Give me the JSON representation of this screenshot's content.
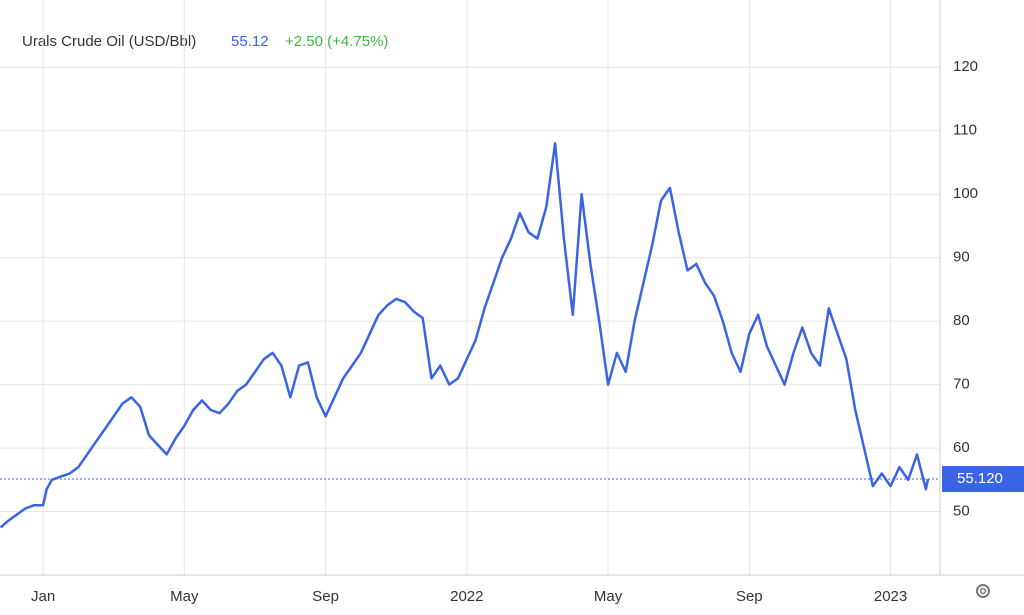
{
  "chart_data": {
    "type": "line",
    "title": "Urals Crude Oil (USD/Bbl)",
    "price": "55.12",
    "change": "+2.50 (+4.75%)",
    "last_label": {
      "value": 55.12,
      "label": "55.120"
    },
    "color": "#3b63e6",
    "grid": true,
    "x": [
      -1.2,
      -1.0,
      -0.75,
      -0.5,
      -0.25,
      0,
      0.1,
      0.25,
      0.5,
      0.75,
      1.0,
      1.25,
      1.5,
      1.75,
      2.0,
      2.25,
      2.5,
      2.75,
      3.0,
      3.25,
      3.5,
      3.75,
      4.0,
      4.25,
      4.5,
      4.75,
      5.0,
      5.25,
      5.5,
      5.75,
      6.0,
      6.25,
      6.5,
      6.75,
      7.0,
      7.25,
      7.5,
      7.75,
      8.0,
      8.25,
      8.5,
      8.75,
      9.0,
      9.25,
      9.5,
      9.75,
      10.0,
      10.25,
      10.5,
      10.75,
      11.0,
      11.25,
      11.5,
      11.75,
      12.0,
      12.25,
      12.5,
      12.75,
      13.0,
      13.25,
      13.5,
      13.75,
      14.0,
      14.25,
      14.5,
      14.75,
      15.0,
      15.25,
      15.5,
      15.75,
      16.0,
      16.25,
      16.5,
      16.75,
      17.0,
      17.25,
      17.5,
      17.75,
      18.0,
      18.25,
      18.5,
      18.75,
      19.0,
      19.25,
      19.5,
      19.75,
      20.0,
      20.25,
      20.5,
      20.75,
      21.0,
      21.25,
      21.5,
      21.75,
      22.0,
      22.25,
      22.5,
      22.75,
      23.0,
      23.25,
      23.5,
      23.75,
      24.0,
      24.25,
      24.5,
      24.75,
      25.0,
      25.06
    ],
    "series": [
      {
        "name": "Urals Crude Oil",
        "color": "#3b63e6",
        "values": [
          47.5,
          48.5,
          49.5,
          50.5,
          51,
          51,
          53.5,
          55,
          55.5,
          56,
          57,
          59,
          61,
          63,
          65,
          67,
          68,
          66.5,
          62,
          60.5,
          59,
          61.5,
          63.5,
          66,
          67.5,
          66,
          65.5,
          67,
          69,
          70,
          72,
          74,
          75,
          73,
          68,
          73,
          73.5,
          68,
          65,
          68,
          71,
          73,
          75,
          78,
          81,
          82.5,
          83.5,
          83,
          81.5,
          80.5,
          71,
          73,
          70,
          71,
          74,
          77,
          82,
          86,
          90,
          93,
          97,
          94,
          93,
          98,
          108,
          93,
          81,
          100,
          89,
          80,
          70,
          75,
          72,
          80,
          86,
          92,
          99,
          101,
          94,
          88,
          89,
          86,
          84,
          80,
          75,
          72,
          78,
          81,
          76,
          73,
          70,
          75,
          79,
          75,
          73,
          82,
          78,
          74,
          66,
          60,
          54,
          56,
          54,
          57,
          55,
          59,
          53.5,
          55.12
        ]
      }
    ],
    "xlim": [
      -1.22,
      25.4
    ],
    "xticks": [
      {
        "value": 0,
        "label": "Jan"
      },
      {
        "value": 4,
        "label": "May"
      },
      {
        "value": 8,
        "label": "Sep"
      },
      {
        "value": 12,
        "label": "2022"
      },
      {
        "value": 16,
        "label": "May"
      },
      {
        "value": 20,
        "label": "Sep"
      },
      {
        "value": 24,
        "label": "2023"
      }
    ],
    "ylim": [
      40,
      130.6
    ],
    "yticks": [
      50,
      60,
      70,
      80,
      90,
      100,
      110,
      120
    ]
  }
}
